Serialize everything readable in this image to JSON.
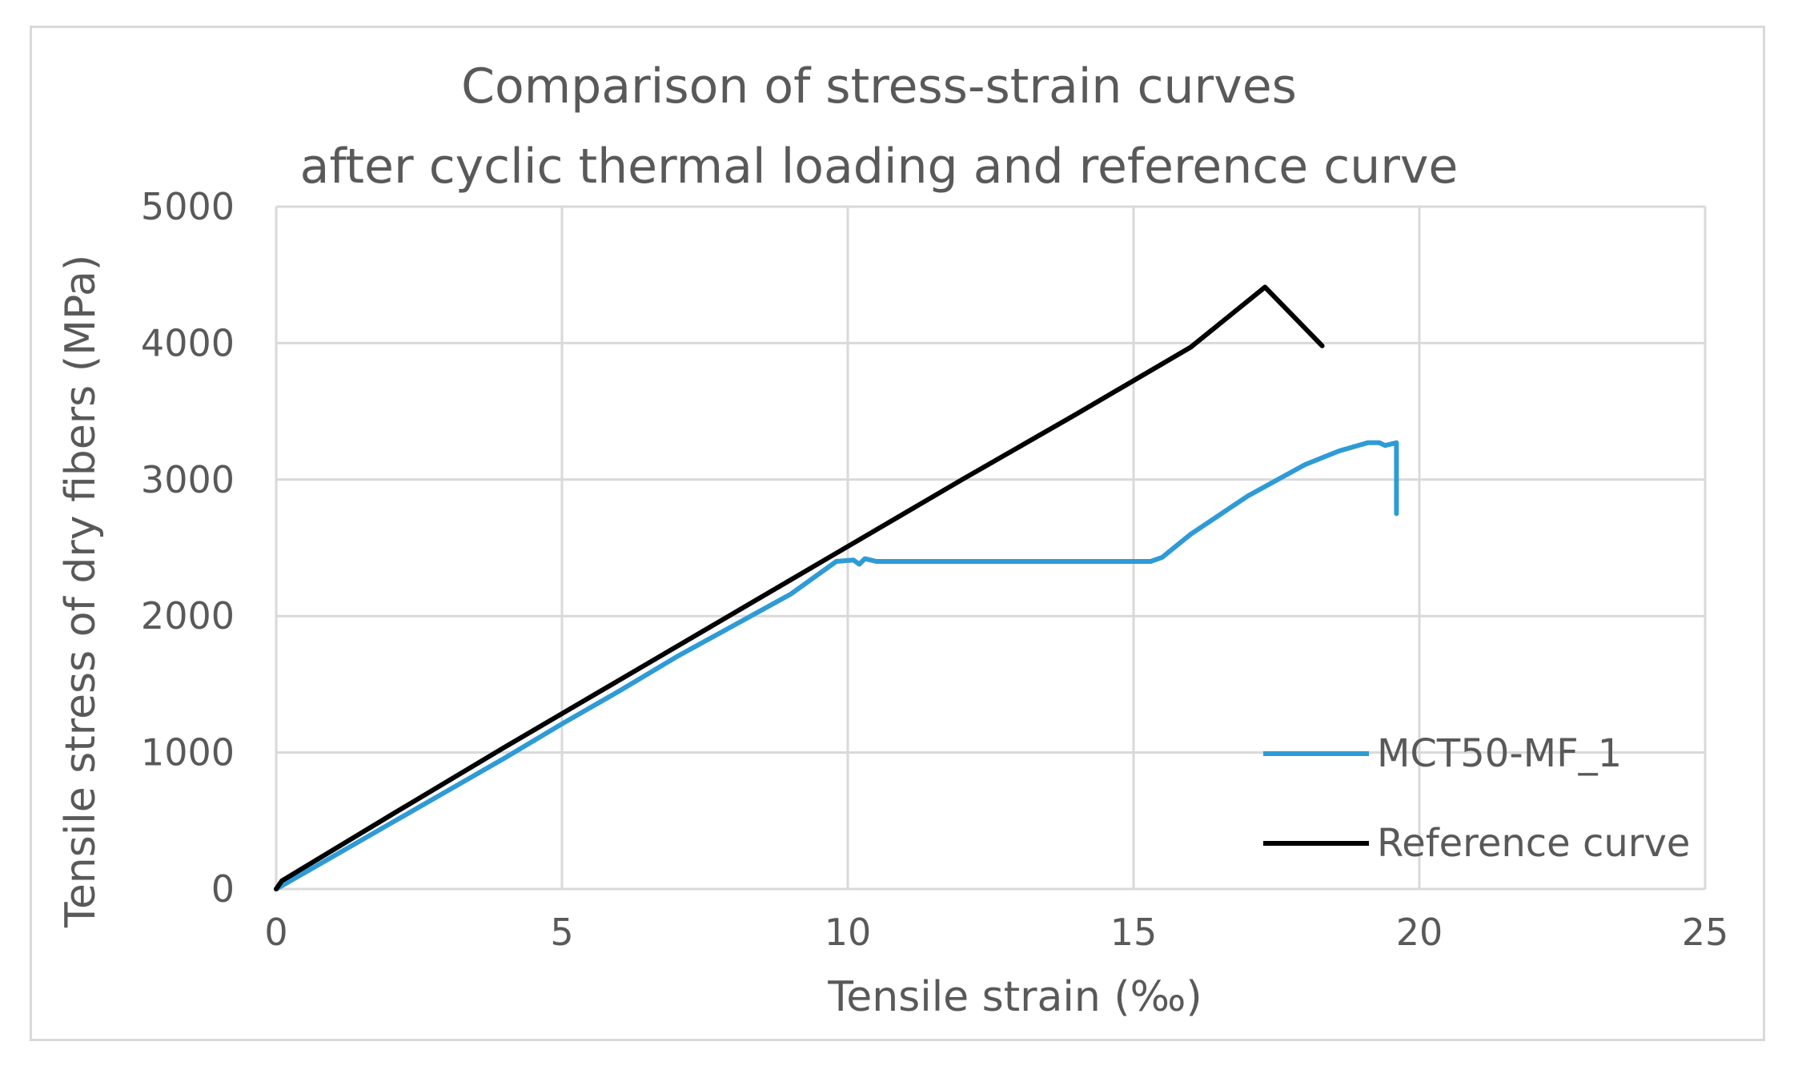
{
  "chart_data": {
    "type": "line",
    "title": [
      "Comparison of stress-strain curves",
      "after cyclic thermal loading and reference curve"
    ],
    "xlabel": "Tensile strain (‰)",
    "ylabel": "Tensile stress of dry fibers (MPa)",
    "xlim": [
      0,
      25
    ],
    "ylim": [
      0,
      5000
    ],
    "xticks": [
      0,
      5,
      10,
      15,
      20,
      25
    ],
    "yticks": [
      0,
      1000,
      2000,
      3000,
      4000,
      5000
    ],
    "xtick_labels": [
      "0",
      "5",
      "10",
      "15",
      "20",
      "25"
    ],
    "ytick_labels": [
      "0",
      "1000",
      "2000",
      "3000",
      "4000",
      "5000"
    ],
    "grid": true,
    "legend_position": "right",
    "series": [
      {
        "name": "MCT50-MF_1",
        "color": "#2e9bd6",
        "x": [
          0,
          1,
          2,
          3,
          4,
          5,
          6,
          7,
          8,
          9,
          9.8,
          10.1,
          10.2,
          10.3,
          10.5,
          12,
          14,
          15.3,
          15.5,
          16,
          17,
          18,
          18.6,
          19.1,
          19.3,
          19.4,
          19.5,
          19.6,
          19.6
        ],
        "y": [
          0,
          240,
          480,
          720,
          960,
          1210,
          1450,
          1700,
          1930,
          2160,
          2400,
          2410,
          2380,
          2420,
          2400,
          2400,
          2400,
          2400,
          2430,
          2600,
          2880,
          3110,
          3210,
          3270,
          3270,
          3250,
          3260,
          3270,
          2750
        ]
      },
      {
        "name": "Reference curve",
        "color": "#000000",
        "x": [
          0,
          0.1,
          2,
          4,
          6,
          8,
          10,
          12,
          14,
          16,
          17.3,
          18.3
        ],
        "y": [
          0,
          60,
          540,
          1040,
          1530,
          2020,
          2510,
          3000,
          3480,
          3970,
          4410,
          3980
        ]
      }
    ]
  }
}
